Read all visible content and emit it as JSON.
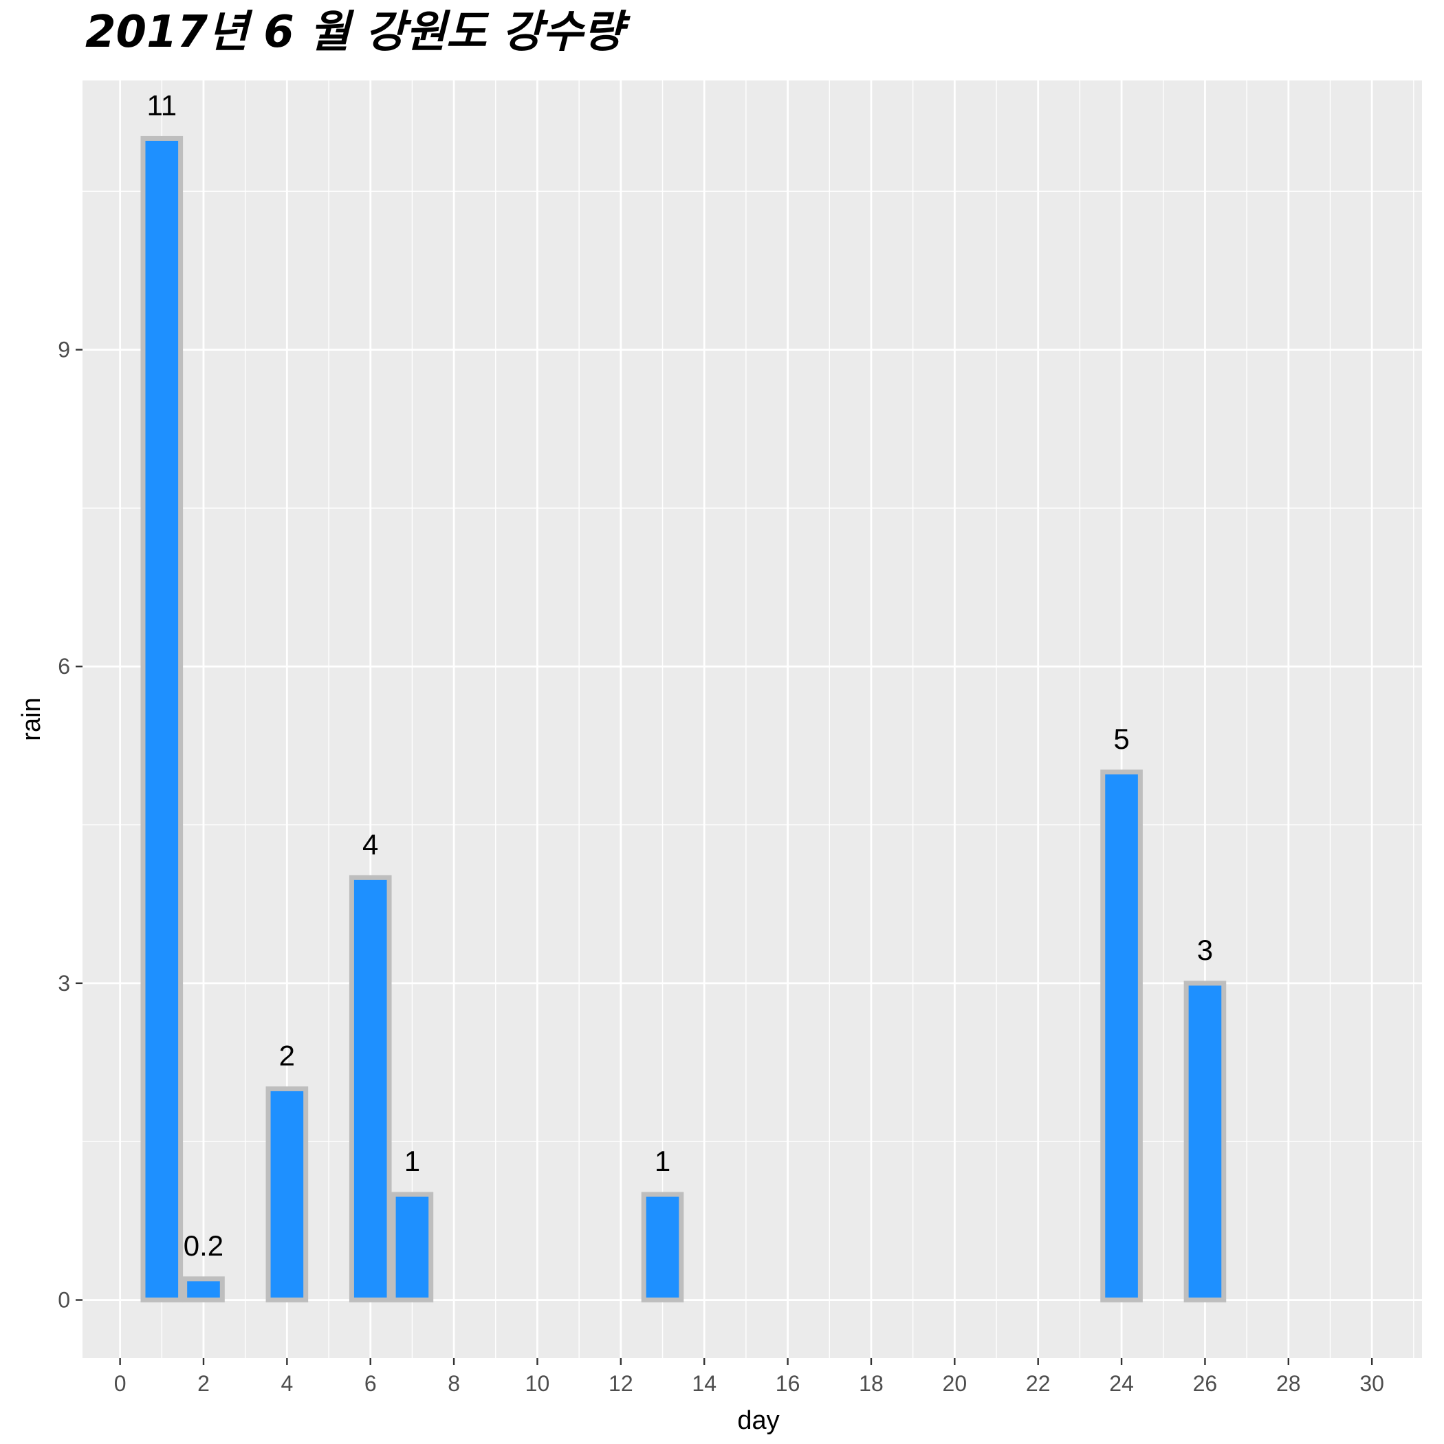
{
  "chart_data": {
    "type": "bar",
    "title": "2017년 6 월 강원도 강수량",
    "xlabel": "day",
    "ylabel": "rain",
    "x": [
      1,
      2,
      4,
      6,
      7,
      13,
      24,
      26
    ],
    "values": [
      11,
      0.2,
      2,
      4,
      1,
      1,
      5,
      3
    ],
    "labels": [
      "11",
      "0.2",
      "2",
      "4",
      "1",
      "1",
      "5",
      "3"
    ],
    "xlim": [
      -0.9,
      31.2
    ],
    "ylim": [
      -0.55,
      11.55
    ],
    "xticks": [
      0,
      2,
      4,
      6,
      8,
      10,
      12,
      14,
      16,
      18,
      20,
      22,
      24,
      26,
      28,
      30
    ],
    "xtick_labels": [
      "0",
      "2",
      "4",
      "6",
      "8",
      "10",
      "12",
      "14",
      "16",
      "18",
      "20",
      "22",
      "24",
      "26",
      "28",
      "30"
    ],
    "yticks": [
      0,
      3,
      6,
      9
    ],
    "ytick_labels": [
      "0",
      "3",
      "6",
      "9"
    ],
    "grid": true,
    "bar_fill": "#1e90ff",
    "bar_outline": "#bebebe",
    "panel_background": "#ebebeb",
    "grid_color": "#ffffff"
  }
}
